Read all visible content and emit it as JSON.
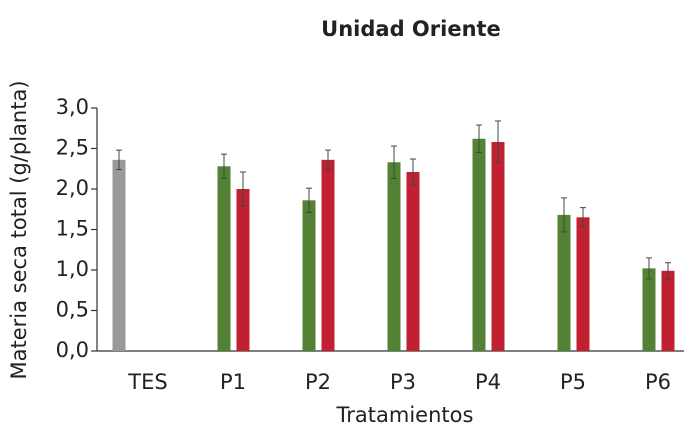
{
  "chart_data": {
    "type": "bar",
    "title": "Unidad Oriente",
    "x_label": "Tratamientos",
    "y_label": "Materia seca total (g/planta)",
    "categories": [
      "TES",
      "P1",
      "P2",
      "P3",
      "P4",
      "P5",
      "P6"
    ],
    "series": [
      {
        "color": "#999999",
        "values": [
          2.36,
          null,
          null,
          null,
          null,
          null,
          null
        ],
        "errors": [
          0.12,
          null,
          null,
          null,
          null,
          null,
          null
        ]
      },
      {
        "color": "#548235",
        "values": [
          null,
          2.28,
          1.86,
          2.33,
          2.62,
          1.68,
          1.02
        ],
        "errors": [
          null,
          0.15,
          0.15,
          0.2,
          0.17,
          0.21,
          0.13
        ]
      },
      {
        "color": "#c0202f",
        "values": [
          null,
          2.0,
          2.36,
          2.21,
          2.58,
          1.65,
          0.99
        ],
        "errors": [
          null,
          0.21,
          0.12,
          0.16,
          0.26,
          0.12,
          0.1
        ]
      }
    ],
    "ylim": [
      0,
      3
    ],
    "yticks": [
      {
        "value": 0,
        "label": "0,0"
      },
      {
        "value": 0.5,
        "label": "0,5"
      },
      {
        "value": 1,
        "label": "1,0"
      },
      {
        "value": 1.5,
        "label": "1,5"
      },
      {
        "value": 2,
        "label": "2,0"
      },
      {
        "value": 2.5,
        "label": "2,5"
      },
      {
        "value": 3,
        "label": "3,0"
      }
    ],
    "grid": false
  }
}
